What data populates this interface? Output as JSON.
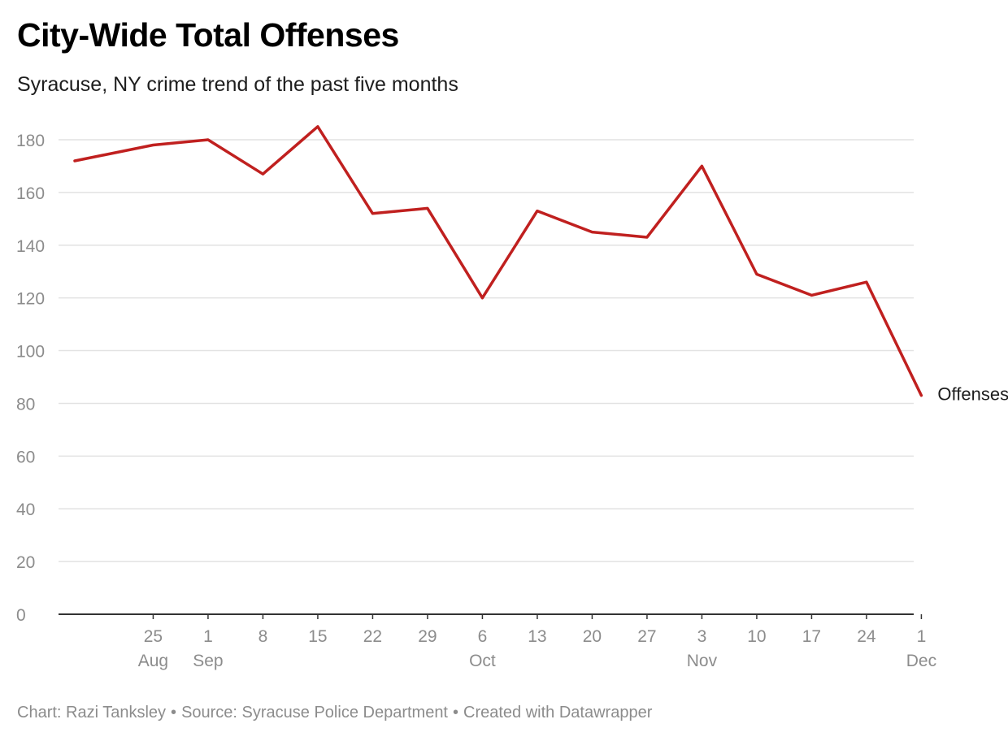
{
  "header": {
    "title": "City-Wide Total Offenses",
    "subtitle": "Syracuse, NY crime trend of the past five months"
  },
  "footer": {
    "chart_credit": "Chart: Razi Tanksley",
    "separator": "•",
    "source": "Source: Syracuse Police Department",
    "created_with": "Created with Datawrapper"
  },
  "colors": {
    "line": "#c0201f",
    "grid": "#e2e2e2",
    "tick_text": "#8c8c8c",
    "axis": "#333333"
  },
  "chart_data": {
    "type": "line",
    "title": "City-Wide Total Offenses",
    "subtitle": "Syracuse, NY crime trend of the past five months",
    "ylim": [
      0,
      180
    ],
    "y_ticks": [
      0,
      20,
      40,
      60,
      80,
      100,
      120,
      140,
      160,
      180
    ],
    "grid": true,
    "x_tick_labels": [
      {
        "day": "25",
        "month": "Aug"
      },
      {
        "day": "1",
        "month": "Sep"
      },
      {
        "day": "8",
        "month": ""
      },
      {
        "day": "15",
        "month": ""
      },
      {
        "day": "22",
        "month": ""
      },
      {
        "day": "29",
        "month": ""
      },
      {
        "day": "6",
        "month": "Oct"
      },
      {
        "day": "13",
        "month": ""
      },
      {
        "day": "20",
        "month": ""
      },
      {
        "day": "27",
        "month": ""
      },
      {
        "day": "3",
        "month": "Nov"
      },
      {
        "day": "10",
        "month": ""
      },
      {
        "day": "17",
        "month": ""
      },
      {
        "day": "24",
        "month": ""
      },
      {
        "day": "1",
        "month": "Dec"
      }
    ],
    "series": [
      {
        "name": "Offenses",
        "dates": [
          "2022-08-15",
          "2022-08-25",
          "2022-09-01",
          "2022-09-08",
          "2022-09-15",
          "2022-09-22",
          "2022-09-29",
          "2022-10-06",
          "2022-10-13",
          "2022-10-20",
          "2022-10-27",
          "2022-11-03",
          "2022-11-10",
          "2022-11-17",
          "2022-11-24",
          "2022-12-01"
        ],
        "values": [
          172,
          178,
          180,
          167,
          185,
          152,
          154,
          120,
          153,
          145,
          143,
          170,
          129,
          121,
          126,
          83
        ]
      }
    ]
  }
}
